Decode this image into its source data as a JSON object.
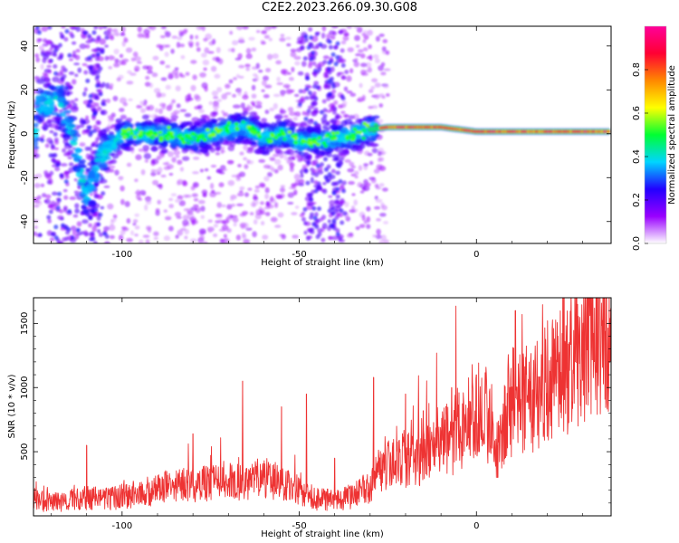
{
  "title": "C2E2.2023.266.09.30.G08",
  "chart_data": [
    {
      "type": "heatmap",
      "xlabel": "Height of straight line (km)",
      "ylabel": "Frequency (Hz)",
      "xlim": [
        -125,
        38
      ],
      "ylim": [
        -50,
        49
      ],
      "xticks": [
        "-100",
        "-50",
        "0"
      ],
      "yticks": [
        "40",
        "20",
        "0",
        "-20",
        "-40"
      ],
      "colorbar": {
        "label": "Normalized spectral amplitude",
        "range": [
          0.0,
          1.0
        ],
        "ticks": [
          "0.0",
          "0.2",
          "0.4",
          "0.6",
          "0.8"
        ],
        "colors": [
          "#ffffff",
          "#9900ff",
          "#2200ff",
          "#00d5ff",
          "#00ff33",
          "#ffff00",
          "#ff8800",
          "#ff0033",
          "#ff0099"
        ]
      },
      "ridge_center_hz": [
        [
          -124,
          12
        ],
        [
          -118,
          16
        ],
        [
          -114,
          0
        ],
        [
          -110,
          -30
        ],
        [
          -106,
          -10
        ],
        [
          -100,
          0
        ],
        [
          -90,
          0
        ],
        [
          -80,
          -2
        ],
        [
          -70,
          2
        ],
        [
          -65,
          3
        ],
        [
          -60,
          -2
        ],
        [
          -55,
          0
        ],
        [
          -50,
          -4
        ],
        [
          -40,
          -2
        ],
        [
          -33,
          0
        ],
        [
          -30,
          2
        ],
        [
          -25,
          3
        ],
        [
          -15,
          3
        ],
        [
          -10,
          3
        ],
        [
          0,
          1
        ],
        [
          10,
          1
        ],
        [
          20,
          1
        ],
        [
          30,
          1
        ],
        [
          38,
          1
        ]
      ]
    },
    {
      "type": "line",
      "xlabel": "Height of straight line (km)",
      "ylabel": "SNR (10 * v/v)",
      "xlim": [
        -125,
        38
      ],
      "ylim": [
        0,
        1700
      ],
      "xticks": [
        "-100",
        "-50",
        "0"
      ],
      "yticks": [
        "500",
        "1000",
        "1500"
      ],
      "series": [
        {
          "name": "SNR",
          "color": "#ee3333",
          "x": [
            -125,
            -120,
            -115,
            -110,
            -105,
            -100,
            -95,
            -90,
            -85,
            -80,
            -75,
            -70,
            -65,
            -60,
            -55,
            -50,
            -45,
            -40,
            -35,
            -30,
            -28,
            -25,
            -20,
            -15,
            -10,
            -5,
            0,
            3,
            6,
            9,
            12,
            15,
            20,
            25,
            30,
            35,
            38
          ],
          "y": [
            130,
            100,
            120,
            140,
            130,
            150,
            180,
            200,
            250,
            230,
            260,
            280,
            270,
            300,
            250,
            200,
            130,
            120,
            150,
            230,
            350,
            400,
            430,
            450,
            550,
            650,
            850,
            800,
            550,
            850,
            950,
            900,
            1050,
            1150,
            1300,
            1420,
            1500
          ]
        }
      ],
      "spikes": [
        [
          -110,
          550
        ],
        [
          -80,
          640
        ],
        [
          -66,
          1050
        ],
        [
          -55,
          850
        ],
        [
          -48,
          950
        ],
        [
          -40,
          450
        ],
        [
          -29,
          1080
        ],
        [
          -20,
          950
        ],
        [
          -15,
          820
        ],
        [
          -7,
          1000
        ],
        [
          0,
          1100
        ],
        [
          6,
          300
        ],
        [
          11,
          1600
        ],
        [
          15,
          1050
        ],
        [
          25,
          1360
        ],
        [
          36,
          1700
        ]
      ]
    }
  ]
}
